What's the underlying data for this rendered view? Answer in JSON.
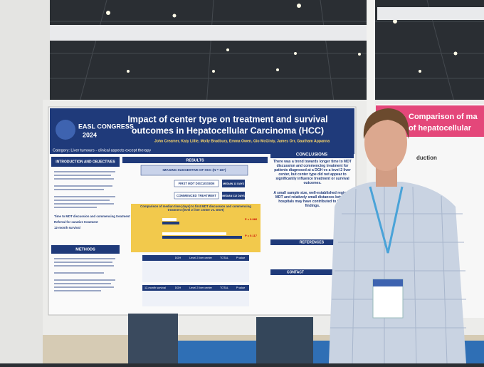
{
  "poster": {
    "congress": "EASL CONGRESS",
    "congress_year": "2024",
    "title_line1": "Impact of center type on treatment and survival",
    "title_line2": "outcomes in Hepatocellular Carcinoma (HCC)",
    "authors": "John Creamer, Katy Lillie, Molly Bradbury, Emma Owen, Gio McGinty, James Orr, Gautham Appanna",
    "category": "Category: Liver tumours - clinical aspects except therapy",
    "sections": {
      "intro": "INTRODUCTION AND OBJECTIVES",
      "methods": "METHODS",
      "results": "RESULTS",
      "conclusions": "CONCLUSIONS",
      "references": "REFERENCES",
      "contact": "CONTACT"
    },
    "results": {
      "imaging": "IMAGING SUGGESTIVE OF HCC (N = 107)",
      "first_mdt": "FIRST MDT DISCUSSION",
      "commenced": "COMMENCED TREATMENT",
      "median_mdt": "MEDIAN 13 DAYS",
      "median_treatment": "MEDIAN 112 DAYS",
      "chart_title": "Comparison of median time (days) to first MDT discussion and commencing treatment (level 2 liver center vs. DGH)",
      "p_values": [
        "P = 0.066",
        "P = 0.117"
      ],
      "table_headers": [
        "DGH",
        "Level 2 liver center",
        "TOTAL",
        "P value"
      ],
      "table2_headers": [
        "12-month survival",
        "DGH",
        "Level 2 liver center",
        "TOTAL",
        "P value"
      ]
    },
    "intro_points": [
      "Time to MDT discussion and commencing treatment",
      "Referral for curative treatment",
      "12-month survival"
    ],
    "conclusion_text": "There was a trend towards longer time to MDT discussion and commencing treatment for patients diagnosed at a DGH vs a level 2 liver center, but center type did not appear to significantly influence treatment or survival outcomes.",
    "conclusion_text2": "A small sample size, well-established regional MDT and relatively small distances between hospitals may have contributed to these findings."
  },
  "neighbor_poster": {
    "title_line1": "Comparison of ma",
    "title_line2": "of hepatocellular",
    "section": "duction"
  }
}
